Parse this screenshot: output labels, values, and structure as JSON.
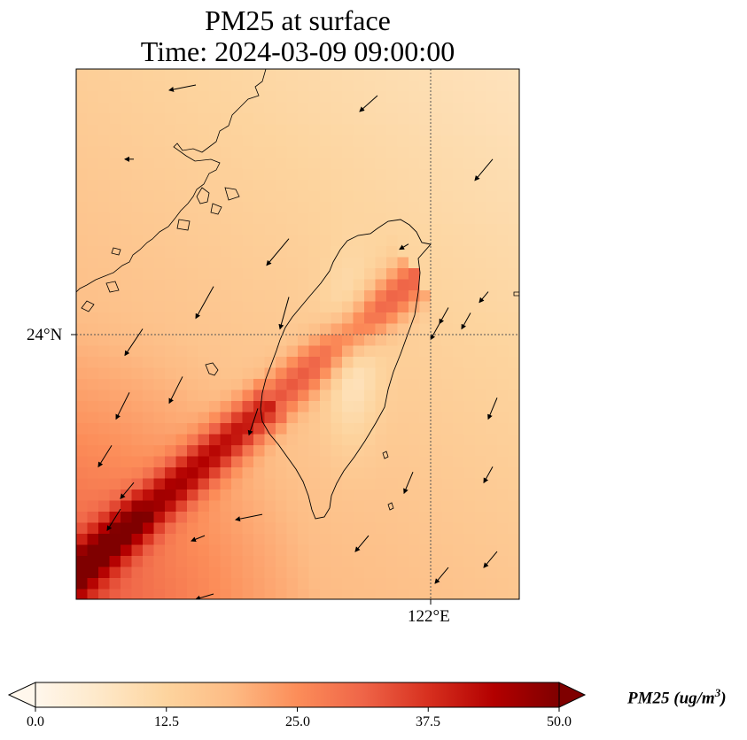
{
  "title_line1": "PM25 at surface",
  "title_line2": "Time: 2024-03-09 09:00:00",
  "axes": {
    "lat_tick": "24°N",
    "lon_tick": "122°E",
    "lat_min": 21.85,
    "lat_max": 26.45,
    "lon_min": 118.5,
    "lon_max": 122.8,
    "gridline_lat": 24.0,
    "gridline_lon": 122.0
  },
  "colorbar": {
    "label_text": "PM25 (ug/m",
    "label_sup": "3",
    "label_close": ")",
    "ticks": [
      "0.0",
      "12.5",
      "25.0",
      "37.5",
      "50.0"
    ],
    "vmin": 0,
    "vmax": 50,
    "extend": "both",
    "colormap": "OrRd",
    "stops": [
      "#fff7ec",
      "#fee8c8",
      "#fdd49e",
      "#fdbb84",
      "#fc8d59",
      "#ef6548",
      "#d7301f",
      "#b30000",
      "#7f0000"
    ]
  },
  "field": {
    "variable": "PM25",
    "units": "ug/m3",
    "background_level": 14,
    "plume_peak": 44,
    "coast_dip": 8
  },
  "wind": {
    "direction": "southwestward"
  }
}
